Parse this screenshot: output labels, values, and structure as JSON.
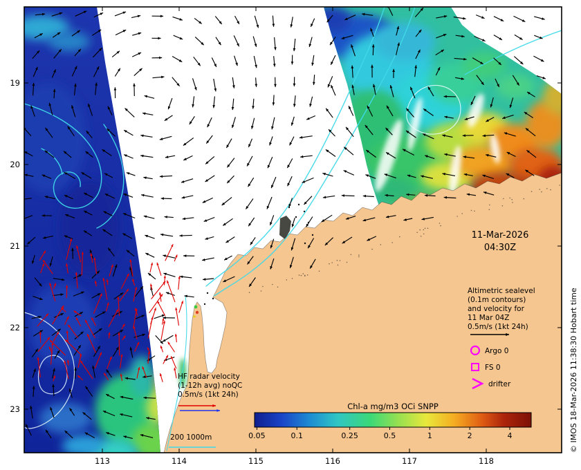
{
  "annotations": {
    "date_line1": "11-Mar-2026",
    "date_line2": "04:30Z",
    "altimetric_lines": [
      "Altimetric sealevel",
      "(0.1m contours)",
      "and velocity for",
      "11 Mar 04Z",
      "0.5m/s (1kt 24h)"
    ],
    "markers": [
      {
        "type": "argo-float",
        "label": "Argo 0"
      },
      {
        "type": "fs-mooring",
        "label": "FS 0"
      },
      {
        "type": "drifter",
        "label": "drifter"
      }
    ],
    "hf_lines": [
      "HF radar velocity",
      "(1-12h avg) noQC",
      "0.5m/s (1kt 24h)"
    ],
    "depth_legend": "200  1000m",
    "copyright": "© IMOS 18-Mar-2026 11:38:30 Hobart time"
  },
  "axes": {
    "x_ticks": [
      "113",
      "114",
      "115",
      "116",
      "117",
      "118"
    ],
    "y_ticks": [
      "19",
      "20",
      "21",
      "22",
      "23"
    ]
  },
  "colorbar": {
    "label": "Chl-a mg/m3 OCi SNPP",
    "ticks": [
      "0.05",
      "0.1",
      "0.25",
      "0.5",
      "1",
      "2",
      "4"
    ],
    "gradient": [
      [
        "0",
        "#101f8e"
      ],
      [
        "0.1",
        "#1a45c8"
      ],
      [
        "0.2",
        "#1d8cd2"
      ],
      [
        "0.3",
        "#2fc6c4"
      ],
      [
        "0.42",
        "#3cd877"
      ],
      [
        "0.52",
        "#97e051"
      ],
      [
        "0.62",
        "#e8e83c"
      ],
      [
        "0.72",
        "#f5ae22"
      ],
      [
        "0.82",
        "#e05e14"
      ],
      [
        "0.9",
        "#ad250b"
      ],
      [
        "1",
        "#7c1106"
      ]
    ]
  },
  "colors": {
    "land": "#f6c690",
    "ocean_deep": "#1b2fa4",
    "contour_cyan": "#3fd9e8",
    "contour_white": "#eafcff",
    "vector_black": "#000000",
    "hf_red": "#e00000",
    "hf_blue": "#2233ee",
    "magenta": "#ff00ff"
  }
}
